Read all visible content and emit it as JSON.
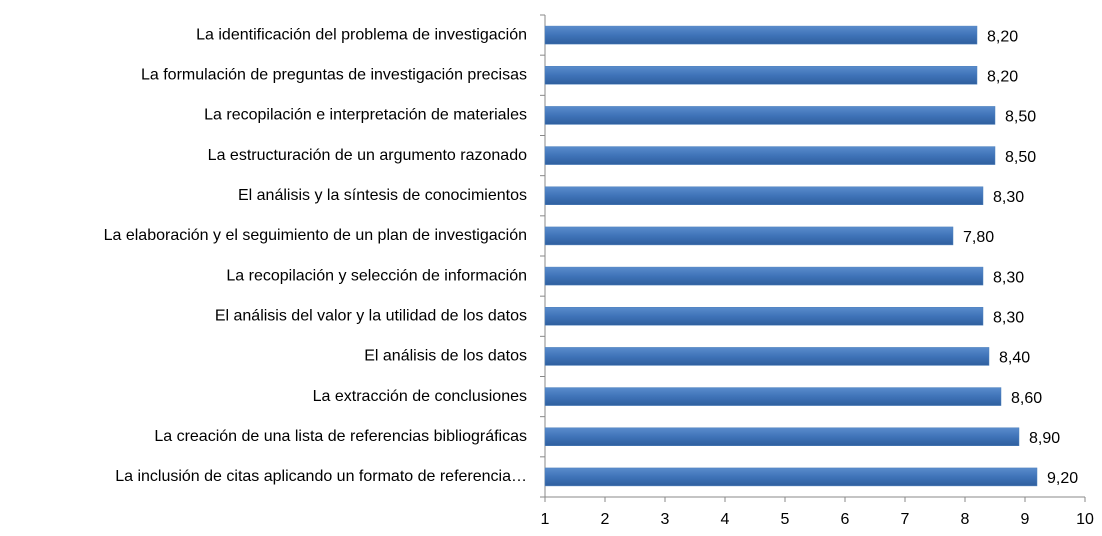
{
  "chart_data": {
    "type": "bar",
    "orientation": "horizontal",
    "categories": [
      "La identificación del problema de investigación",
      "La formulación de preguntas de investigación precisas",
      "La recopilación e interpretación de materiales",
      "La estructuración de un argumento razonado",
      "El análisis y la síntesis de conocimientos",
      "La elaboración y el seguimiento de un plan de investigación",
      "La recopilación y selección de información",
      "El análisis del valor y la utilidad de los datos",
      "El análisis de los datos",
      "La extracción de conclusiones",
      "La creación de una lista de referencias bibliográficas",
      "La inclusión de citas aplicando un formato de referencia…"
    ],
    "values": [
      8.2,
      8.2,
      8.5,
      8.5,
      8.3,
      7.8,
      8.3,
      8.3,
      8.4,
      8.6,
      8.9,
      9.2
    ],
    "value_labels": [
      "8,20",
      "8,20",
      "8,50",
      "8,50",
      "8,30",
      "7,80",
      "8,30",
      "8,30",
      "8,40",
      "8,60",
      "8,90",
      "9,20"
    ],
    "color": "#4f81bd",
    "xlim": [
      1,
      10
    ],
    "xticks": [
      1,
      2,
      3,
      4,
      5,
      6,
      7,
      8,
      9,
      10
    ],
    "grid": false
  }
}
